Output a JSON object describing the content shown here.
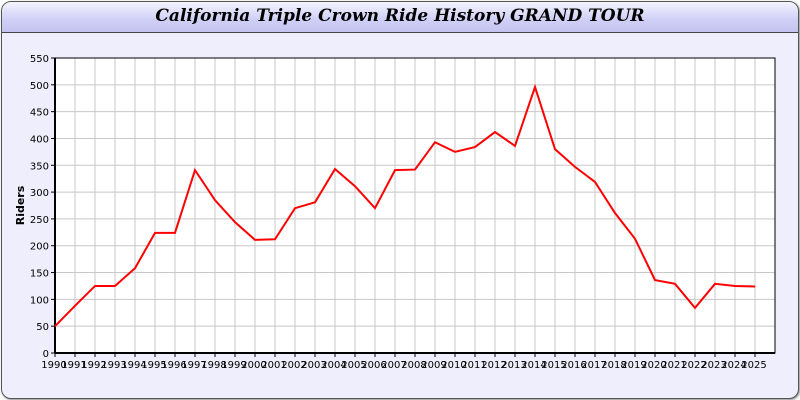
{
  "chart_data": {
    "type": "line",
    "title": "California Triple Crown Ride History GRAND TOUR",
    "xlabel": "",
    "ylabel": "Riders",
    "ylim": [
      0,
      550
    ],
    "yticks": [
      0,
      50,
      100,
      150,
      200,
      250,
      300,
      350,
      400,
      450,
      500,
      550
    ],
    "grid": true,
    "line_color": "#ff0000",
    "categories": [
      "1990",
      "1991",
      "1992",
      "1993",
      "1994",
      "1995",
      "1996",
      "1997",
      "1998",
      "1999",
      "2000",
      "2001",
      "2002",
      "2003",
      "2004",
      "2005",
      "2006",
      "2007",
      "2008",
      "2009",
      "2010",
      "2011",
      "2012",
      "2013",
      "2014",
      "2015",
      "2016",
      "2017",
      "2018",
      "2019",
      "2020",
      "2021",
      "2022",
      "2023",
      "2024",
      "2025"
    ],
    "values": [
      50,
      88,
      125,
      125,
      158,
      224,
      224,
      341,
      285,
      244,
      211,
      212,
      270,
      281,
      343,
      311,
      270,
      341,
      342,
      393,
      375,
      384,
      412,
      386,
      496,
      380,
      347,
      319,
      261,
      213,
      136,
      129,
      84,
      129,
      125,
      124
    ]
  }
}
